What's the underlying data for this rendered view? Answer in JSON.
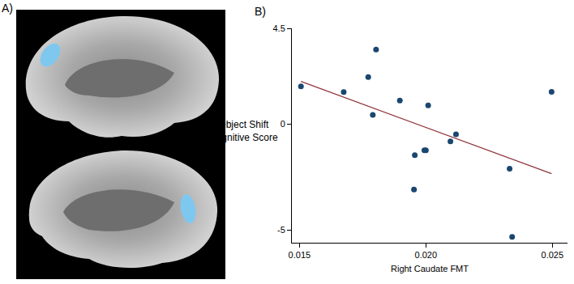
{
  "panel_labels": [
    "A)",
    "B)"
  ],
  "chart_data": {
    "type": "scatter",
    "xlabel": "Right Caudate FMT",
    "ylabel": [
      "Object Shift",
      "Cognitive Score"
    ],
    "xlim": [
      0.0147,
      0.0256
    ],
    "ylim": [
      -5.6,
      4.5
    ],
    "xticks": [
      0.015,
      {
        "value": 0.02,
        "label": "0.020"
      },
      0.025
    ],
    "yticks": [
      -5,
      0,
      4.5
    ],
    "grid": false,
    "series": [
      {
        "type": "scatter",
        "marker": "circle",
        "color": "#1a476f",
        "x": [
          0.01506,
          0.01675,
          0.01772,
          0.01803,
          0.0179,
          0.01897,
          0.02009,
          0.01956,
          0.01953,
          0.01994,
          0.02,
          0.02097,
          0.02119,
          0.02331,
          0.02497,
          0.02341
        ],
        "values": [
          1.77,
          1.5,
          2.2,
          3.5,
          0.42,
          1.1,
          0.87,
          -1.47,
          -3.09,
          -1.25,
          -1.25,
          -0.83,
          -0.49,
          -2.11,
          1.51,
          -5.32
        ]
      },
      {
        "type": "line",
        "line_style": "solid",
        "color": "#90353b",
        "x": [
          0.01506,
          0.02497
        ],
        "values": [
          2.0,
          -2.35
        ]
      }
    ]
  }
}
